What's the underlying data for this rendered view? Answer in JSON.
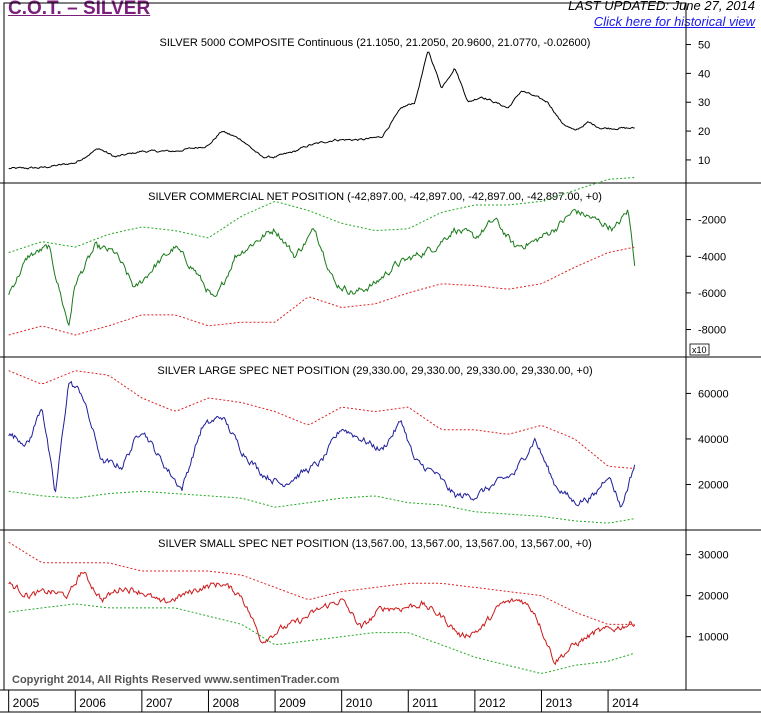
{
  "header": {
    "title": "C.O.T. – SILVER",
    "last_updated": "LAST UPDATED:  June 27, 2014",
    "historical_link": "Click here for historical view"
  },
  "footer": {
    "copyright": "Copyright 2014, All Rights Reserved  www.sentimenTrader.com"
  },
  "colors": {
    "price": "#000000",
    "commercial": "#1a7a1a",
    "large_spec": "#1f1f9a",
    "small_spec": "#cc1a1a",
    "band_red": "#dd2222",
    "band_green": "#22aa22"
  },
  "chart_data": [
    {
      "type": "line",
      "title": "SILVER 5000 COMPOSITE Continuous (21.1050, 21.2050, 20.9600, 21.0770, -0.02600)",
      "ylim": [
        2,
        54
      ],
      "yticks": [
        10,
        20,
        30,
        40,
        50
      ],
      "ytick_labels": [
        "10",
        "20",
        "30",
        "40",
        "50"
      ],
      "series": [
        {
          "role": "price",
          "x": [
            2005.0,
            2005.5,
            2006.0,
            2006.35,
            2006.6,
            2007.0,
            2007.5,
            2008.0,
            2008.2,
            2008.5,
            2008.8,
            2009.0,
            2009.3,
            2009.5,
            2009.9,
            2010.3,
            2010.6,
            2010.9,
            2011.1,
            2011.3,
            2011.5,
            2011.7,
            2011.9,
            2012.1,
            2012.3,
            2012.5,
            2012.7,
            2012.9,
            2013.1,
            2013.3,
            2013.5,
            2013.7,
            2013.9,
            2014.2,
            2014.4
          ],
          "y": [
            7,
            7.3,
            9,
            14,
            11,
            13,
            13,
            15,
            20,
            17,
            11,
            11,
            13,
            15,
            17,
            17,
            18,
            28,
            30,
            48,
            35,
            42,
            30,
            32,
            30,
            28,
            34,
            32,
            30,
            23,
            20,
            23,
            21,
            21,
            21
          ]
        }
      ]
    },
    {
      "type": "line",
      "title": "SILVER COMMERCIAL NET POSITION (-42,897.00, -42,897.00, -42,897.00, -42,897.00, +0)",
      "ylim": [
        -9500,
        0
      ],
      "yticks": [
        -8000,
        -6000,
        -4000,
        -2000
      ],
      "ytick_labels": [
        "-8000",
        "-6000",
        "-4000",
        "-2000"
      ],
      "scale_label": "x10",
      "series": [
        {
          "role": "net",
          "x": [
            2005.0,
            2005.3,
            2005.6,
            2005.9,
            2006.0,
            2006.3,
            2006.6,
            2006.9,
            2007.2,
            2007.5,
            2007.8,
            2008.1,
            2008.4,
            2008.7,
            2009.0,
            2009.3,
            2009.6,
            2009.9,
            2010.2,
            2010.5,
            2010.8,
            2011.1,
            2011.4,
            2011.7,
            2012.0,
            2012.3,
            2012.6,
            2012.9,
            2013.2,
            2013.5,
            2013.8,
            2014.1,
            2014.3,
            2014.4
          ],
          "y": [
            -6000,
            -4000,
            -3500,
            -7800,
            -5500,
            -3500,
            -3800,
            -5800,
            -4500,
            -3500,
            -4800,
            -6500,
            -4000,
            -3200,
            -2500,
            -4000,
            -2500,
            -5500,
            -6000,
            -5500,
            -4500,
            -4000,
            -3500,
            -2500,
            -3000,
            -2000,
            -3500,
            -3200,
            -2500,
            -1500,
            -2000,
            -2500,
            -1500,
            -4300
          ]
        },
        {
          "role": "upper-band",
          "x": [
            2005.0,
            2005.5,
            2006.0,
            2006.5,
            2007.0,
            2007.5,
            2008.0,
            2008.5,
            2009.0,
            2009.5,
            2010.0,
            2010.5,
            2011.0,
            2011.5,
            2012.0,
            2012.5,
            2013.0,
            2013.5,
            2014.0,
            2014.4
          ],
          "y": [
            -3800,
            -3200,
            -3500,
            -2800,
            -2400,
            -2600,
            -3000,
            -1800,
            -1000,
            -1500,
            -2200,
            -2600,
            -2500,
            -1600,
            -1200,
            -1200,
            -1000,
            -400,
            200,
            300
          ]
        },
        {
          "role": "lower-band",
          "x": [
            2005.0,
            2005.5,
            2006.0,
            2006.5,
            2007.0,
            2007.5,
            2008.0,
            2008.5,
            2009.0,
            2009.5,
            2010.0,
            2010.5,
            2011.0,
            2011.5,
            2012.0,
            2012.5,
            2013.0,
            2013.5,
            2014.0,
            2014.4
          ],
          "y": [
            -8300,
            -7800,
            -8300,
            -7800,
            -7200,
            -7200,
            -7800,
            -7600,
            -7600,
            -6200,
            -6800,
            -6600,
            -6000,
            -5500,
            -5600,
            -5800,
            -5500,
            -4600,
            -3800,
            -3500
          ]
        }
      ]
    },
    {
      "type": "line",
      "title": "SILVER LARGE SPEC NET POSITION (29,330.00, 29,330.00, 29,330.00, 29,330.00, +0)",
      "ylim": [
        0,
        76000
      ],
      "yticks": [
        20000,
        40000,
        60000
      ],
      "ytick_labels": [
        "20000",
        "40000",
        "60000"
      ],
      "series": [
        {
          "role": "net",
          "x": [
            2005.0,
            2005.3,
            2005.5,
            2005.7,
            2005.9,
            2006.1,
            2006.4,
            2006.7,
            2007.0,
            2007.3,
            2007.6,
            2007.9,
            2008.2,
            2008.5,
            2008.8,
            2009.1,
            2009.4,
            2009.7,
            2010.0,
            2010.3,
            2010.6,
            2010.9,
            2011.1,
            2011.4,
            2011.7,
            2012.0,
            2012.3,
            2012.6,
            2012.9,
            2013.2,
            2013.5,
            2013.8,
            2014.0,
            2014.2,
            2014.4
          ],
          "y": [
            42000,
            38000,
            55000,
            15000,
            65000,
            60000,
            30000,
            28000,
            45000,
            30000,
            18000,
            45000,
            50000,
            35000,
            25000,
            20000,
            25000,
            30000,
            45000,
            40000,
            35000,
            48000,
            30000,
            25000,
            15000,
            15000,
            20000,
            25000,
            40000,
            20000,
            12000,
            15000,
            25000,
            10000,
            29000
          ]
        },
        {
          "role": "upper-band",
          "x": [
            2005.0,
            2005.5,
            2006.0,
            2006.5,
            2007.0,
            2007.5,
            2008.0,
            2008.5,
            2009.0,
            2009.5,
            2010.0,
            2010.5,
            2011.0,
            2011.5,
            2012.0,
            2012.5,
            2013.0,
            2013.5,
            2014.0,
            2014.4
          ],
          "y": [
            70000,
            64000,
            70000,
            68000,
            58000,
            52000,
            58000,
            56000,
            52000,
            46000,
            54000,
            52000,
            54000,
            44000,
            44000,
            42000,
            46000,
            40000,
            28000,
            27000
          ]
        },
        {
          "role": "lower-band",
          "x": [
            2005.0,
            2005.5,
            2006.0,
            2006.5,
            2007.0,
            2007.5,
            2008.0,
            2008.5,
            2009.0,
            2009.5,
            2010.0,
            2010.5,
            2011.0,
            2011.5,
            2012.0,
            2012.5,
            2013.0,
            2013.5,
            2014.0,
            2014.4
          ],
          "y": [
            17000,
            15000,
            14000,
            16000,
            17000,
            16000,
            15000,
            14000,
            10000,
            12000,
            14000,
            15000,
            12000,
            11000,
            8000,
            7000,
            6000,
            4000,
            3000,
            5000
          ]
        }
      ]
    },
    {
      "type": "line",
      "title": "SILVER SMALL SPEC NET POSITION (13,567.00, 13,567.00, 13,567.00, 13,567.00, +0)",
      "ylim": [
        -3000,
        36000
      ],
      "yticks": [
        10000,
        20000,
        30000
      ],
      "ytick_labels": [
        "10000",
        "20000",
        "30000"
      ],
      "series": [
        {
          "role": "net",
          "x": [
            2005.0,
            2005.3,
            2005.6,
            2005.9,
            2006.1,
            2006.4,
            2006.7,
            2007.0,
            2007.3,
            2007.6,
            2007.9,
            2008.2,
            2008.5,
            2008.8,
            2009.1,
            2009.4,
            2009.7,
            2010.0,
            2010.3,
            2010.6,
            2010.9,
            2011.2,
            2011.5,
            2011.8,
            2012.1,
            2012.4,
            2012.7,
            2012.9,
            2013.2,
            2013.5,
            2013.8,
            2014.1,
            2014.4
          ],
          "y": [
            23000,
            20000,
            21000,
            20000,
            26000,
            19000,
            22000,
            21000,
            18000,
            20000,
            22000,
            23000,
            20000,
            9000,
            12000,
            14000,
            17000,
            19000,
            12000,
            17000,
            17000,
            18000,
            15000,
            10000,
            12000,
            18000,
            19000,
            16000,
            4000,
            8000,
            11000,
            12000,
            13500
          ]
        },
        {
          "role": "upper-band",
          "x": [
            2005.0,
            2005.5,
            2006.0,
            2006.5,
            2007.0,
            2007.5,
            2008.0,
            2008.5,
            2009.0,
            2009.5,
            2010.0,
            2010.5,
            2011.0,
            2011.5,
            2012.0,
            2012.5,
            2013.0,
            2013.5,
            2014.0,
            2014.4
          ],
          "y": [
            33000,
            28000,
            28000,
            28000,
            26000,
            26000,
            26000,
            25000,
            22000,
            19000,
            21000,
            22000,
            23000,
            23000,
            22000,
            21000,
            20000,
            16000,
            13000,
            13000
          ]
        },
        {
          "role": "lower-band",
          "x": [
            2005.0,
            2005.5,
            2006.0,
            2006.5,
            2007.0,
            2007.5,
            2008.0,
            2008.5,
            2009.0,
            2009.5,
            2010.0,
            2010.5,
            2011.0,
            2011.5,
            2012.0,
            2012.5,
            2013.0,
            2013.5,
            2014.0,
            2014.4
          ],
          "y": [
            16000,
            17000,
            18000,
            17000,
            17000,
            17000,
            15000,
            13000,
            8000,
            9000,
            10000,
            11000,
            11000,
            8000,
            5000,
            3000,
            1000,
            3000,
            4000,
            6000
          ]
        }
      ]
    }
  ],
  "x_axis": {
    "ticks": [
      2005,
      2006,
      2007,
      2008,
      2009,
      2010,
      2011,
      2012,
      2013,
      2014
    ],
    "tick_labels": [
      "2005",
      "2006",
      "2007",
      "2008",
      "2009",
      "2010",
      "2011",
      "2012",
      "2013",
      "2014"
    ],
    "xlim": [
      2004.93,
      2015.17
    ]
  }
}
